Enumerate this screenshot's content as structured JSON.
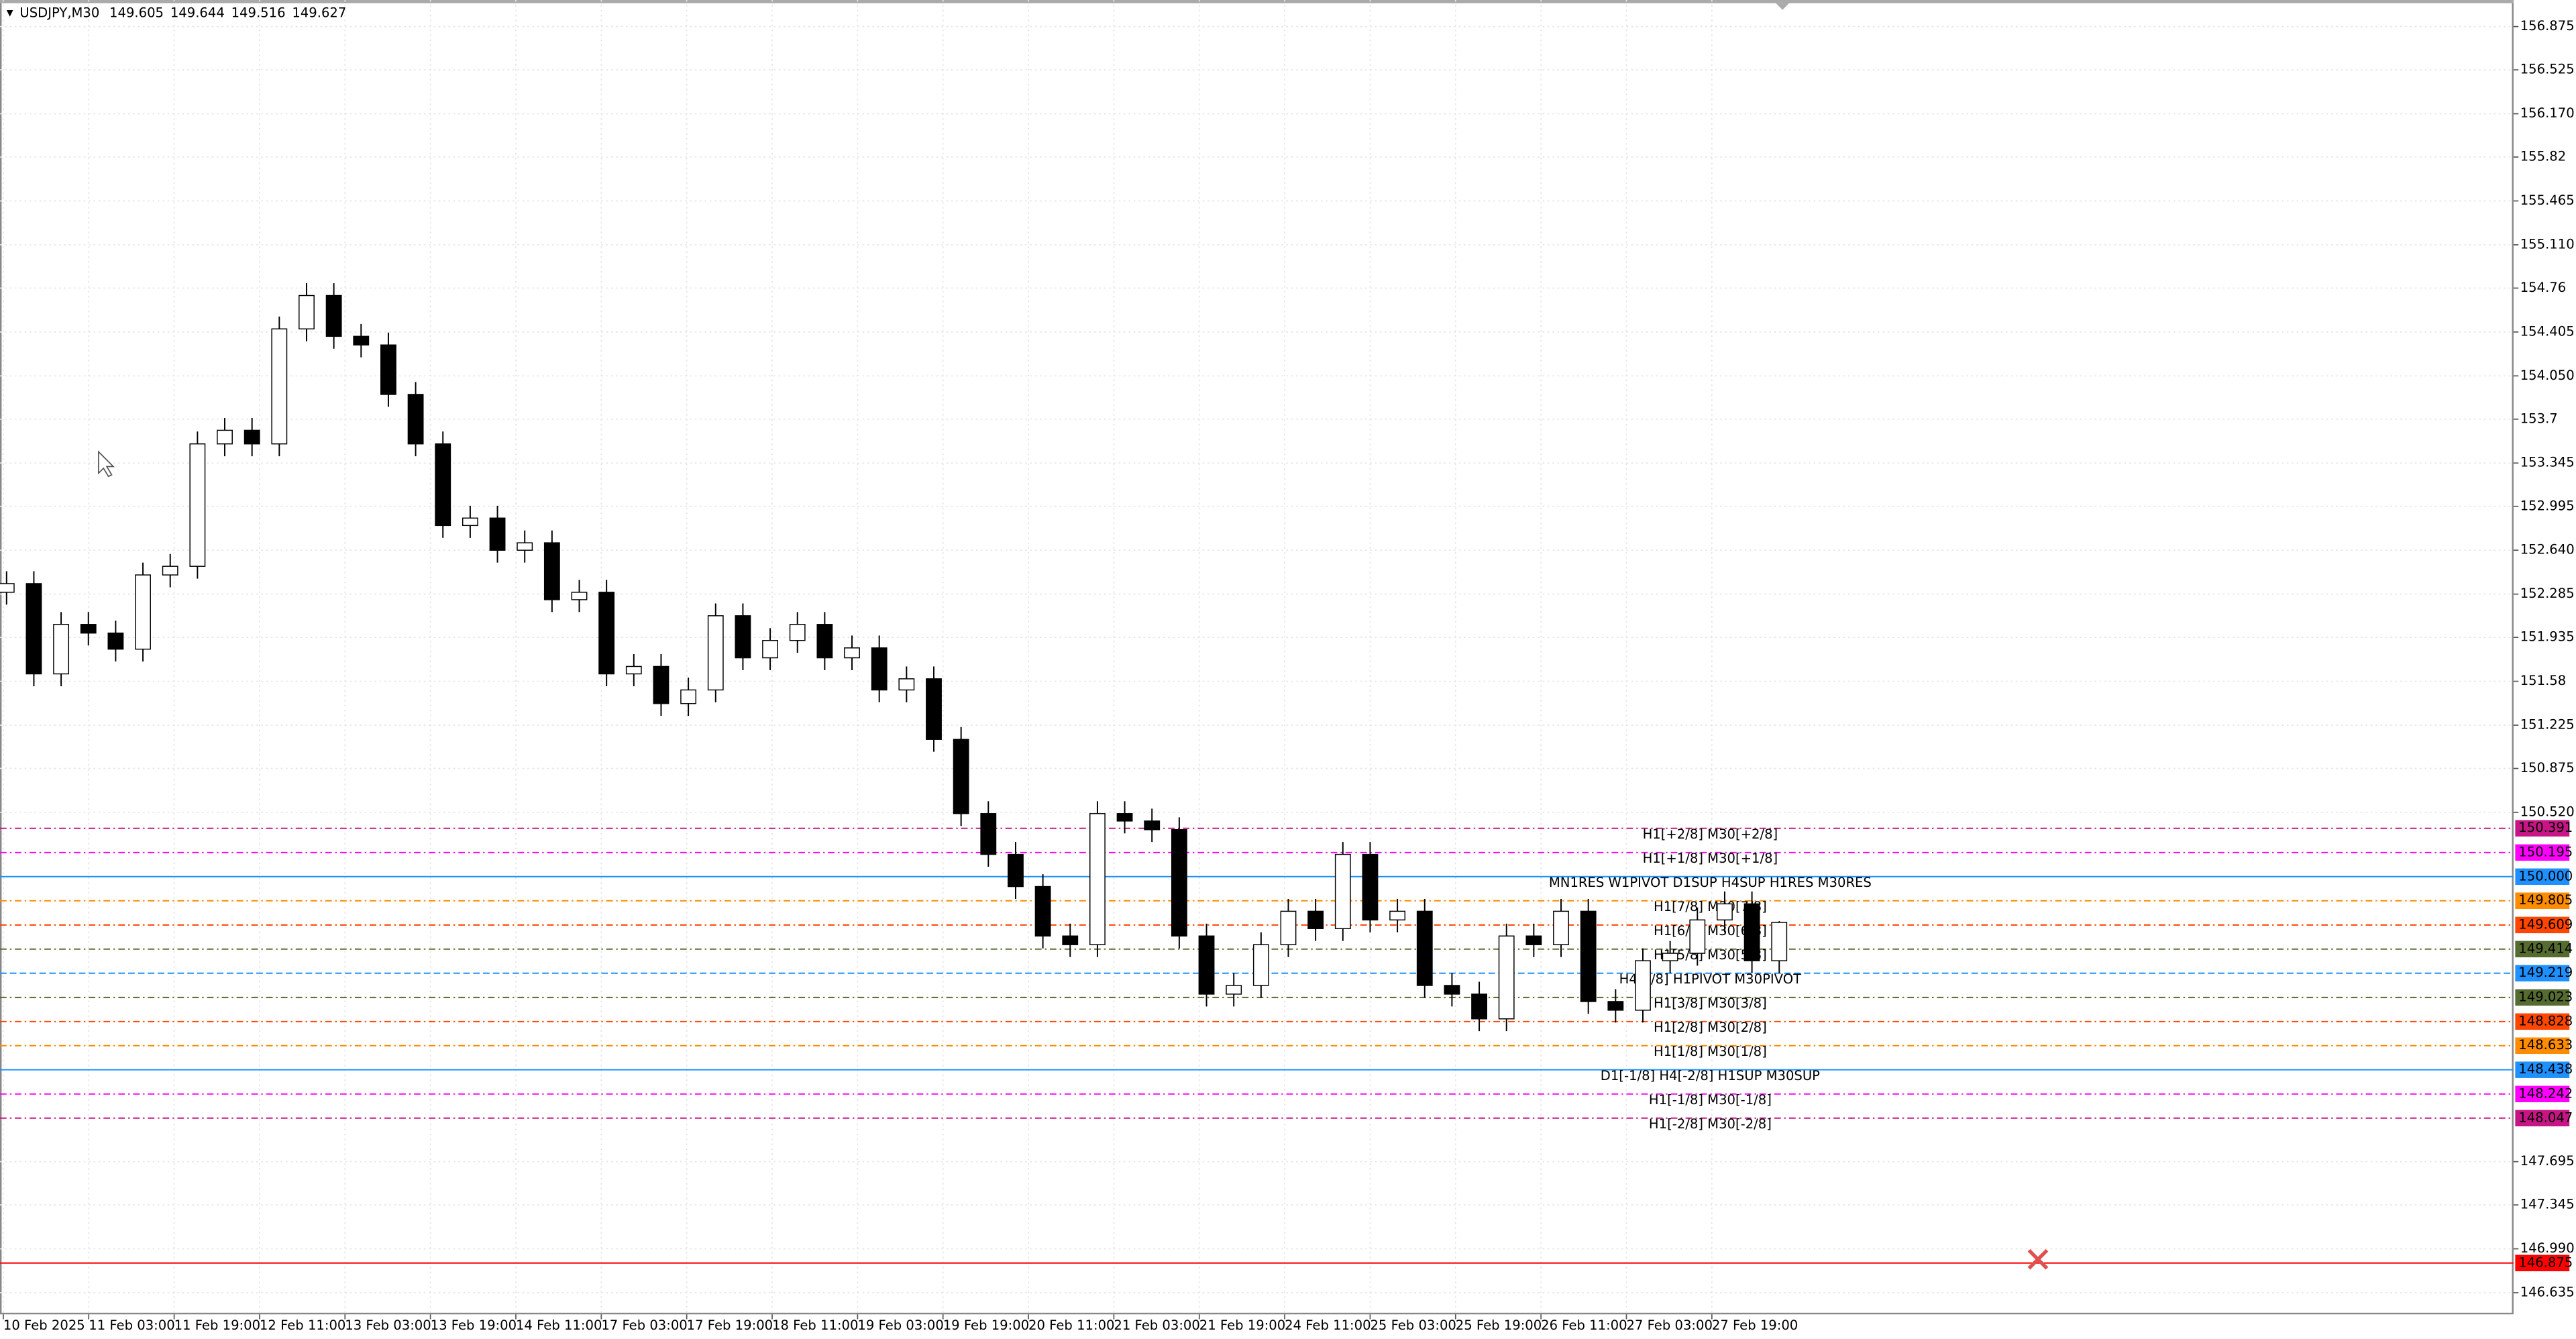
{
  "chart_data": {
    "type": "candlestick",
    "symbol": "USDJPY,M30",
    "quote": {
      "open": 149.605,
      "high": 149.644,
      "low": 149.516,
      "close": 149.627
    },
    "categories": [
      "10 Feb 2025",
      "11 Feb 03:00",
      "11 Feb 19:00",
      "12 Feb 11:00",
      "13 Feb 03:00",
      "13 Feb 19:00",
      "14 Feb 11:00",
      "17 Feb 03:00",
      "17 Feb 19:00",
      "18 Feb 11:00",
      "19 Feb 03:00",
      "19 Feb 19:00",
      "20 Feb 11:00",
      "21 Feb 03:00",
      "21 Feb 19:00",
      "24 Feb 11:00",
      "25 Feb 03:00",
      "25 Feb 19:00",
      "26 Feb 11:00",
      "27 Feb 03:00",
      "27 Feb 19:00"
    ],
    "ylim": [
      146.46,
      157.09
    ],
    "yticks": [
      156.875,
      156.525,
      {
        "value": 156.17,
        "label": "156.170"
      },
      155.82,
      155.465,
      {
        "value": 155.11,
        "label": "155.110"
      },
      154.76,
      154.405,
      {
        "value": 154.05,
        "label": "154.050"
      },
      153.7,
      153.345,
      152.995,
      {
        "value": 152.64,
        "label": "152.640"
      },
      152.285,
      151.935,
      151.58,
      151.225,
      150.875,
      {
        "value": 150.52,
        "label": "150.520"
      },
      147.695,
      147.345,
      {
        "value": 146.99,
        "label": "146.990"
      },
      146.635
    ],
    "grid": true,
    "up_color": "#ffffff",
    "down_color": "#000000",
    "ohlc": [
      [
        152.3,
        152.47,
        152.2,
        152.37
      ],
      [
        152.37,
        152.47,
        151.54,
        151.64
      ],
      [
        151.64,
        152.14,
        151.54,
        152.04
      ],
      [
        152.04,
        152.14,
        151.87,
        151.97
      ],
      [
        151.97,
        152.07,
        151.74,
        151.84
      ],
      [
        151.84,
        152.54,
        151.74,
        152.44
      ],
      [
        152.44,
        152.61,
        152.34,
        152.51
      ],
      [
        152.51,
        153.6,
        152.41,
        153.5
      ],
      [
        153.5,
        153.71,
        153.4,
        153.61
      ],
      [
        153.61,
        153.71,
        153.4,
        153.5
      ],
      [
        153.5,
        154.53,
        153.4,
        154.43
      ],
      [
        154.43,
        154.8,
        154.33,
        154.7
      ],
      [
        154.7,
        154.8,
        154.27,
        154.37
      ],
      [
        154.37,
        154.47,
        154.2,
        154.3
      ],
      [
        154.3,
        154.4,
        153.8,
        153.9
      ],
      [
        153.9,
        154.0,
        153.4,
        153.5
      ],
      [
        153.5,
        153.6,
        152.74,
        152.84
      ],
      [
        152.84,
        153.0,
        152.74,
        152.9
      ],
      [
        152.9,
        153.0,
        152.54,
        152.64
      ],
      [
        152.64,
        152.8,
        152.54,
        152.7
      ],
      [
        152.7,
        152.8,
        152.14,
        152.24
      ],
      [
        152.24,
        152.4,
        152.14,
        152.3
      ],
      [
        152.3,
        152.4,
        151.54,
        151.64
      ],
      [
        151.64,
        151.8,
        151.54,
        151.7
      ],
      [
        151.7,
        151.8,
        151.3,
        151.4
      ],
      [
        151.4,
        151.61,
        151.3,
        151.51
      ],
      [
        151.51,
        152.21,
        151.41,
        152.11
      ],
      [
        152.11,
        152.21,
        151.67,
        151.77
      ],
      [
        151.77,
        152.01,
        151.67,
        151.91
      ],
      [
        151.91,
        152.14,
        151.81,
        152.04
      ],
      [
        152.04,
        152.14,
        151.67,
        151.77
      ],
      [
        151.77,
        151.95,
        151.67,
        151.85
      ],
      [
        151.85,
        151.95,
        151.41,
        151.51
      ],
      [
        151.51,
        151.7,
        151.41,
        151.6
      ],
      [
        151.6,
        151.7,
        151.01,
        151.11
      ],
      [
        151.11,
        151.21,
        150.41,
        150.51
      ],
      [
        150.51,
        150.61,
        150.08,
        150.18
      ],
      [
        150.18,
        150.28,
        149.82,
        149.92
      ],
      [
        149.92,
        150.02,
        149.42,
        149.52
      ],
      [
        149.52,
        149.62,
        149.35,
        149.45
      ],
      [
        149.45,
        150.61,
        149.35,
        150.51
      ],
      [
        150.51,
        150.61,
        150.35,
        150.45
      ],
      [
        150.45,
        150.55,
        150.28,
        150.38
      ],
      [
        150.38,
        150.48,
        149.42,
        149.52
      ],
      [
        149.52,
        149.62,
        148.95,
        149.05
      ],
      [
        149.05,
        149.22,
        148.95,
        149.12
      ],
      [
        149.12,
        149.55,
        149.02,
        149.45
      ],
      [
        149.45,
        149.82,
        149.35,
        149.72
      ],
      [
        149.72,
        149.82,
        149.48,
        149.58
      ],
      [
        149.58,
        150.28,
        149.48,
        150.18
      ],
      [
        150.18,
        150.28,
        149.55,
        149.65
      ],
      [
        149.65,
        149.82,
        149.55,
        149.72
      ],
      [
        149.72,
        149.82,
        149.02,
        149.12
      ],
      [
        149.12,
        149.22,
        148.95,
        149.05
      ],
      [
        149.05,
        149.15,
        148.75,
        148.85
      ],
      [
        148.85,
        149.62,
        148.75,
        149.52
      ],
      [
        149.52,
        149.62,
        149.35,
        149.45
      ],
      [
        149.45,
        149.82,
        149.35,
        149.72
      ],
      [
        149.72,
        149.82,
        148.89,
        148.99
      ],
      [
        148.99,
        149.09,
        148.82,
        148.92
      ],
      [
        148.92,
        149.42,
        148.82,
        149.32
      ],
      [
        149.32,
        149.48,
        149.22,
        149.38
      ],
      [
        149.38,
        149.75,
        149.28,
        149.65
      ],
      [
        149.65,
        149.88,
        149.55,
        149.78
      ],
      [
        149.78,
        149.88,
        149.22,
        149.32
      ],
      [
        149.32,
        149.64,
        149.22,
        149.63
      ]
    ],
    "levels": [
      {
        "price": 150.391,
        "label": "H1[+2/8] M30[+2/8]",
        "color": "#c71585",
        "style": "dashdot"
      },
      {
        "price": 150.195,
        "label": "H1[+1/8] M30[+1/8]",
        "color": "#ff00ff",
        "style": "dashdot"
      },
      {
        "price": 150,
        "price_label": "150.000",
        "label": "MN1RES W1PIVOT D1SUP H4SUP H1RES M30RES",
        "color": "#1e90ff",
        "style": "solid"
      },
      {
        "price": 149.805,
        "label": "H1[7/8] M30[7/8]",
        "color": "#ff8c00",
        "style": "dashdot"
      },
      {
        "price": 149.609,
        "label": "H1[6/8] M30[6/8]",
        "color": "#ff4500",
        "style": "dashdot"
      },
      {
        "price": 149.414,
        "label": "H1[5/8] M30[5/8]",
        "color": "#556b2f",
        "style": "dashdot"
      },
      {
        "price": 149.219,
        "label": "H4[1/8] H1PIVOT M30PIVOT",
        "color": "#1e90ff",
        "style": "dashed"
      },
      {
        "price": 149.023,
        "label": "H1[3/8] M30[3/8]",
        "color": "#556b2f",
        "style": "dashdot"
      },
      {
        "price": 148.828,
        "label": "H1[2/8] M30[2/8]",
        "color": "#ff4500",
        "style": "dashdot"
      },
      {
        "price": 148.633,
        "label": "H1[1/8] M30[1/8]",
        "color": "#ff8c00",
        "style": "dashdot"
      },
      {
        "price": 148.438,
        "label": "D1[-1/8] H4[-2/8] H1SUP M30SUP",
        "color": "#1e90ff",
        "style": "solid"
      },
      {
        "price": 148.242,
        "label": "H1[-1/8] M30[-1/8]",
        "color": "#ff00ff",
        "style": "dashdot"
      },
      {
        "price": 148.047,
        "label": "H1[-2/8] M30[-2/8]",
        "color": "#c71585",
        "style": "dashdot"
      },
      {
        "price": 146.875,
        "color": "#ff0000",
        "style": "solid"
      }
    ]
  }
}
